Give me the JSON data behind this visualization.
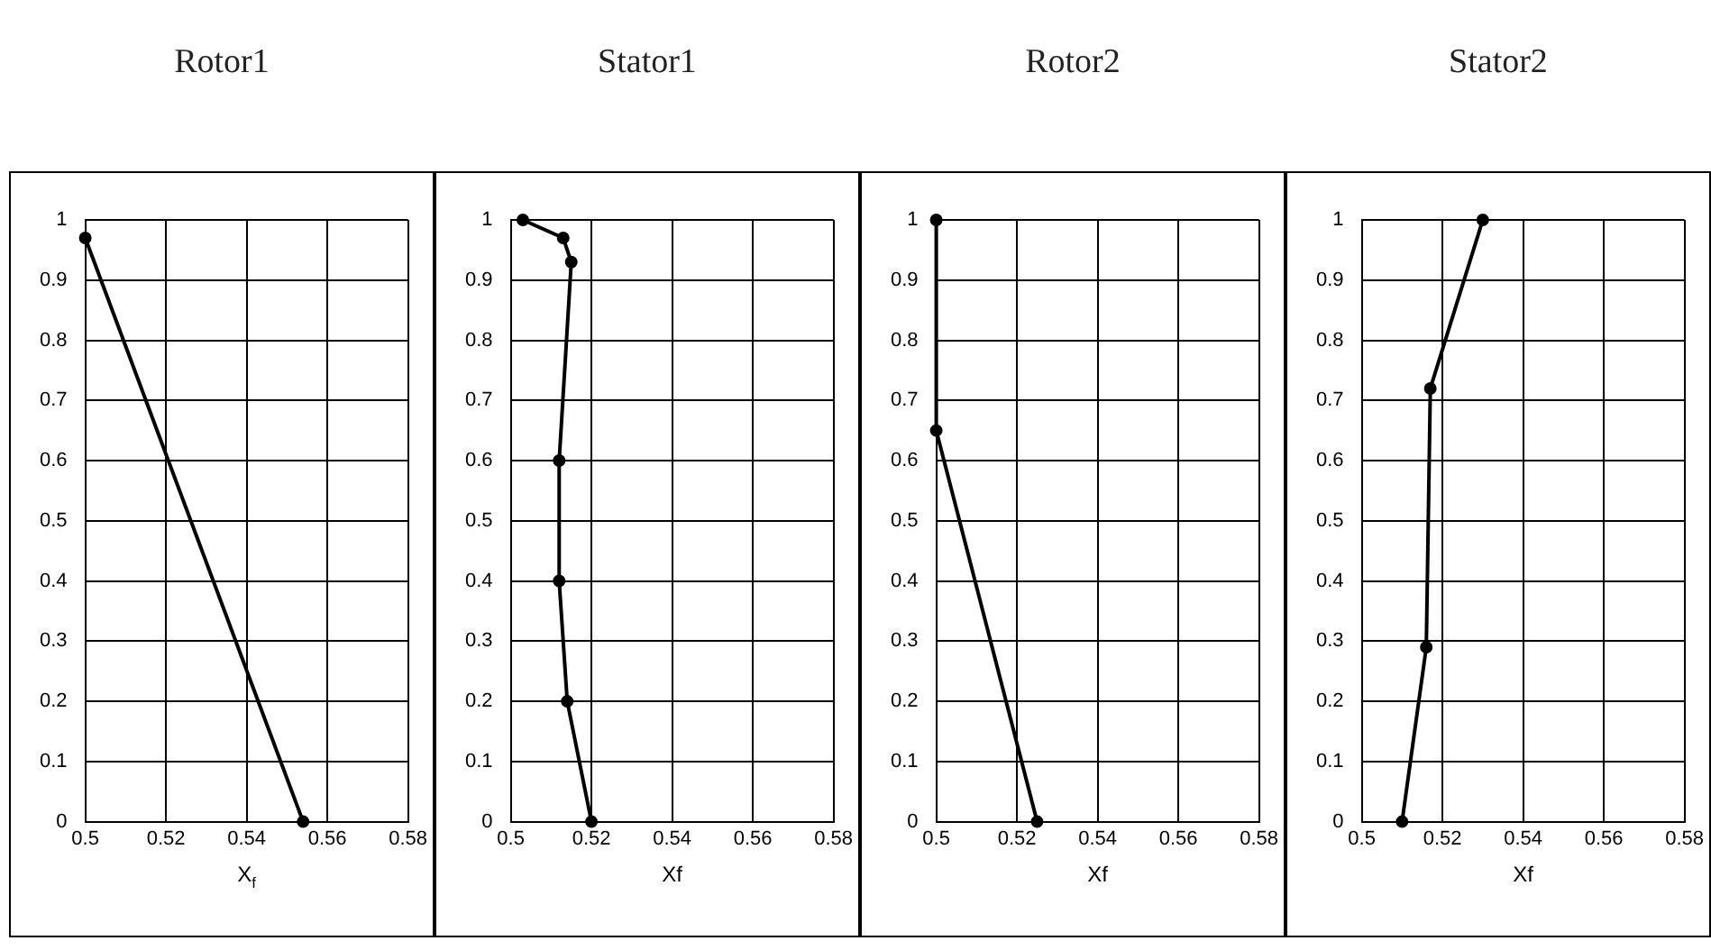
{
  "chart_data": [
    {
      "type": "line",
      "title": "Rotor1",
      "xlabel": "X$_{f}$",
      "xlim": [
        0.5,
        0.58
      ],
      "xticks": [
        0.5,
        0.52,
        0.54,
        0.56,
        0.58
      ],
      "ylim": [
        0,
        1
      ],
      "yticks": [
        0,
        0.1,
        0.2,
        0.3,
        0.4,
        0.5,
        0.6,
        0.7,
        0.8,
        0.9,
        1
      ],
      "grid": true,
      "legend": false,
      "marker": "circle",
      "series": [
        {
          "color": "#000000",
          "x": [
            0.5,
            0.554
          ],
          "values": [
            0.97,
            0
          ]
        }
      ]
    },
    {
      "type": "line",
      "title": "Stator1",
      "xlabel": "Xf",
      "xlim": [
        0.5,
        0.58
      ],
      "xticks": [
        0.5,
        0.52,
        0.54,
        0.56,
        0.58
      ],
      "ylim": [
        0,
        1
      ],
      "yticks": [
        0,
        0.1,
        0.2,
        0.3,
        0.4,
        0.5,
        0.6,
        0.7,
        0.8,
        0.9,
        1
      ],
      "grid": true,
      "legend": false,
      "marker": "circle",
      "series": [
        {
          "color": "#000000",
          "x": [
            0.503,
            0.513,
            0.515,
            0.512,
            0.512,
            0.514,
            0.52
          ],
          "values": [
            1,
            0.97,
            0.93,
            0.6,
            0.4,
            0.2,
            0
          ]
        }
      ]
    },
    {
      "type": "line",
      "title": "Rotor2",
      "xlabel": "Xf",
      "xlim": [
        0.5,
        0.58
      ],
      "xticks": [
        0.5,
        0.52,
        0.54,
        0.56,
        0.58
      ],
      "ylim": [
        0,
        1
      ],
      "yticks": [
        0,
        0.1,
        0.2,
        0.3,
        0.4,
        0.5,
        0.6,
        0.7,
        0.8,
        0.9,
        1
      ],
      "grid": true,
      "legend": false,
      "marker": "circle",
      "series": [
        {
          "color": "#000000",
          "x": [
            0.5,
            0.5,
            0.525
          ],
          "values": [
            1,
            0.65,
            0
          ]
        }
      ]
    },
    {
      "type": "line",
      "title": "Stator2",
      "xlabel": "Xf",
      "xlim": [
        0.5,
        0.58
      ],
      "xticks": [
        0.5,
        0.52,
        0.54,
        0.56,
        0.58
      ],
      "ylim": [
        0,
        1
      ],
      "yticks": [
        0,
        0.1,
        0.2,
        0.3,
        0.4,
        0.5,
        0.6,
        0.7,
        0.8,
        0.9,
        1
      ],
      "grid": true,
      "legend": false,
      "marker": "circle",
      "series": [
        {
          "color": "#000000",
          "x": [
            0.53,
            0.517,
            0.516,
            0.51
          ],
          "values": [
            1,
            0.72,
            0.29,
            0
          ]
        }
      ]
    }
  ]
}
